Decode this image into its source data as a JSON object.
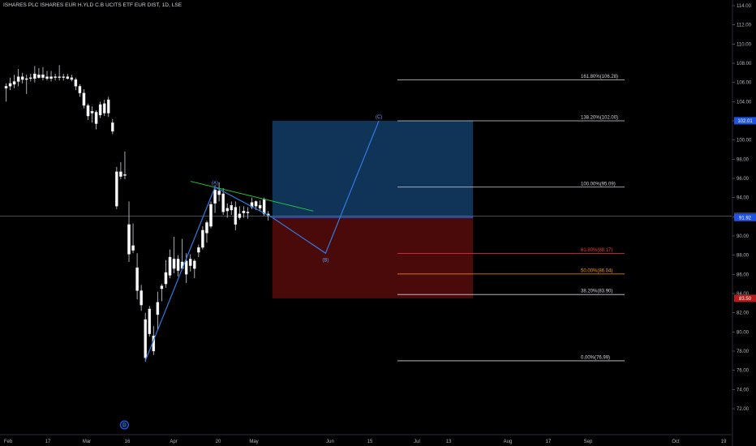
{
  "chart_title": "ISHARES PLC ISHARES EUR H.YLD C.B UCITS ETF EUR DIST, 1D, LSE",
  "colors": {
    "background": "#000000",
    "candle_up": "#ffffff",
    "candle_down": "#ffffff",
    "wave_line": "#2f7be0",
    "trend_line": "#1fc23a",
    "target_zone": "#103358",
    "stop_zone": "#4a0a0a",
    "price_badge_gray": "#363a45",
    "price_badge_blue": "#1e53e5",
    "price_badge_red": "#b71c1c",
    "fib_white": "#d1d4dc",
    "fib_red": "#f23645",
    "fib_orange": "#ff9800"
  },
  "chart_data": {
    "type": "candlestick",
    "title": "ISHARES PLC ISHARES EUR H.YLD C.B UCITS ETF EUR DIST, 1D, LSE",
    "ylim": [
      71.5,
      114.3
    ],
    "y_ticks": [
      "114.00",
      "112.00",
      "110.00",
      "108.00",
      "106.00",
      "104.00",
      "102.00",
      "100.00",
      "98.00",
      "96.00",
      "94.00",
      "92.00",
      "90.00",
      "88.00",
      "86.00",
      "84.00",
      "82.00",
      "80.00",
      "78.00",
      "76.00",
      "74.00",
      "72.00"
    ],
    "x_ticks": [
      "Feb",
      "17",
      "Mar",
      "16",
      "Apr",
      "20",
      "May",
      "Jun",
      "15",
      "Jul",
      "13",
      "Aug",
      "17",
      "Sep",
      "Oct",
      "19"
    ],
    "candles": [
      {
        "i": 0,
        "o": 105.4,
        "h": 105.9,
        "l": 104.0,
        "c": 105.6
      },
      {
        "i": 1,
        "o": 105.6,
        "h": 106.5,
        "l": 105.2,
        "c": 105.9
      },
      {
        "i": 2,
        "o": 105.8,
        "h": 106.8,
        "l": 105.4,
        "c": 106.1
      },
      {
        "i": 3,
        "o": 106.1,
        "h": 107.4,
        "l": 105.6,
        "c": 106.6
      },
      {
        "i": 4,
        "o": 106.6,
        "h": 107.0,
        "l": 105.9,
        "c": 106.3
      },
      {
        "i": 5,
        "o": 106.3,
        "h": 106.8,
        "l": 104.8,
        "c": 106.4
      },
      {
        "i": 6,
        "o": 106.4,
        "h": 106.9,
        "l": 106.1,
        "c": 106.5
      },
      {
        "i": 7,
        "o": 106.4,
        "h": 107.7,
        "l": 106.0,
        "c": 106.9
      },
      {
        "i": 8,
        "o": 106.8,
        "h": 107.5,
        "l": 106.4,
        "c": 106.5
      },
      {
        "i": 9,
        "o": 106.5,
        "h": 107.6,
        "l": 106.2,
        "c": 106.8
      },
      {
        "i": 10,
        "o": 106.6,
        "h": 107.2,
        "l": 106.2,
        "c": 106.4
      },
      {
        "i": 11,
        "o": 106.4,
        "h": 107.2,
        "l": 106.1,
        "c": 106.6
      },
      {
        "i": 12,
        "o": 106.5,
        "h": 106.9,
        "l": 106.2,
        "c": 106.6
      },
      {
        "i": 13,
        "o": 106.6,
        "h": 107.8,
        "l": 106.2,
        "c": 106.5
      },
      {
        "i": 14,
        "o": 106.5,
        "h": 106.9,
        "l": 106.2,
        "c": 106.6
      },
      {
        "i": 15,
        "o": 106.6,
        "h": 106.9,
        "l": 106.3,
        "c": 106.4
      },
      {
        "i": 16,
        "o": 106.5,
        "h": 106.8,
        "l": 106.1,
        "c": 106.3
      },
      {
        "i": 17,
        "o": 106.3,
        "h": 106.5,
        "l": 105.2,
        "c": 105.6
      },
      {
        "i": 18,
        "o": 105.6,
        "h": 105.8,
        "l": 104.5,
        "c": 104.9
      },
      {
        "i": 19,
        "o": 104.9,
        "h": 105.3,
        "l": 103.3,
        "c": 103.6
      },
      {
        "i": 20,
        "o": 103.6,
        "h": 103.8,
        "l": 102.1,
        "c": 102.5
      },
      {
        "i": 21,
        "o": 102.8,
        "h": 103.5,
        "l": 101.8,
        "c": 103.0
      },
      {
        "i": 22,
        "o": 102.9,
        "h": 103.1,
        "l": 101.1,
        "c": 101.7
      },
      {
        "i": 23,
        "o": 102.6,
        "h": 104.0,
        "l": 102.3,
        "c": 103.7
      },
      {
        "i": 24,
        "o": 103.8,
        "h": 104.2,
        "l": 102.5,
        "c": 102.8
      },
      {
        "i": 25,
        "o": 102.8,
        "h": 104.5,
        "l": 102.4,
        "c": 104.2
      },
      {
        "i": 26,
        "o": 101.8,
        "h": 102.2,
        "l": 100.6,
        "c": 100.9
      },
      {
        "i": 27,
        "o": 96.7,
        "h": 97.2,
        "l": 92.8,
        "c": 93.1
      },
      {
        "i": 28,
        "o": 96.2,
        "h": 97.7,
        "l": 95.9,
        "c": 96.7
      },
      {
        "i": 29,
        "o": 96.3,
        "h": 98.8,
        "l": 95.9,
        "c": 96.4
      },
      {
        "i": 30,
        "o": 91.2,
        "h": 93.6,
        "l": 87.3,
        "c": 88.1
      },
      {
        "i": 31,
        "o": 88.5,
        "h": 91.3,
        "l": 88.2,
        "c": 89.0
      },
      {
        "i": 32,
        "o": 86.7,
        "h": 88.2,
        "l": 83.4,
        "c": 84.3
      },
      {
        "i": 33,
        "o": 84.3,
        "h": 84.9,
        "l": 82.2,
        "c": 82.8
      },
      {
        "i": 34,
        "o": 81.3,
        "h": 82.0,
        "l": 76.9,
        "c": 77.3
      },
      {
        "i": 35,
        "o": 79.8,
        "h": 82.7,
        "l": 79.5,
        "c": 82.4
      },
      {
        "i": 36,
        "o": 79.6,
        "h": 80.6,
        "l": 77.6,
        "c": 78.0
      },
      {
        "i": 37,
        "o": 81.8,
        "h": 84.2,
        "l": 80.2,
        "c": 83.1
      },
      {
        "i": 38,
        "o": 84.5,
        "h": 85.0,
        "l": 83.2,
        "c": 84.8
      },
      {
        "i": 39,
        "o": 85.0,
        "h": 87.5,
        "l": 84.6,
        "c": 86.2
      },
      {
        "i": 40,
        "o": 85.9,
        "h": 88.6,
        "l": 85.6,
        "c": 87.8
      },
      {
        "i": 41,
        "o": 87.6,
        "h": 89.9,
        "l": 86.1,
        "c": 86.6
      },
      {
        "i": 42,
        "o": 86.4,
        "h": 88.0,
        "l": 85.8,
        "c": 87.6
      },
      {
        "i": 43,
        "o": 87.3,
        "h": 89.7,
        "l": 86.9,
        "c": 86.6
      },
      {
        "i": 44,
        "o": 86.0,
        "h": 88.2,
        "l": 85.1,
        "c": 87.4
      },
      {
        "i": 45,
        "o": 87.6,
        "h": 88.1,
        "l": 86.3,
        "c": 86.9
      },
      {
        "i": 46,
        "o": 86.6,
        "h": 87.6,
        "l": 85.6,
        "c": 87.4
      },
      {
        "i": 47,
        "o": 88.3,
        "h": 89.1,
        "l": 87.8,
        "c": 88.8
      },
      {
        "i": 48,
        "o": 88.8,
        "h": 91.0,
        "l": 88.6,
        "c": 90.6
      },
      {
        "i": 49,
        "o": 90.3,
        "h": 91.6,
        "l": 89.3,
        "c": 91.4
      },
      {
        "i": 50,
        "o": 91.0,
        "h": 93.6,
        "l": 90.8,
        "c": 93.3
      },
      {
        "i": 51,
        "o": 93.4,
        "h": 95.3,
        "l": 92.4,
        "c": 94.8
      },
      {
        "i": 52,
        "o": 94.7,
        "h": 95.6,
        "l": 93.6,
        "c": 94.3
      },
      {
        "i": 53,
        "o": 94.4,
        "h": 95.0,
        "l": 92.2,
        "c": 92.5
      },
      {
        "i": 54,
        "o": 92.6,
        "h": 93.4,
        "l": 91.9,
        "c": 92.9
      },
      {
        "i": 55,
        "o": 92.7,
        "h": 93.6,
        "l": 92.2,
        "c": 93.2
      },
      {
        "i": 56,
        "o": 93.0,
        "h": 93.6,
        "l": 90.6,
        "c": 91.2
      },
      {
        "i": 57,
        "o": 91.9,
        "h": 93.1,
        "l": 91.7,
        "c": 92.3
      },
      {
        "i": 58,
        "o": 92.6,
        "h": 93.1,
        "l": 91.9,
        "c": 92.4
      },
      {
        "i": 59,
        "o": 92.4,
        "h": 93.0,
        "l": 91.8,
        "c": 92.5
      },
      {
        "i": 60,
        "o": 93.5,
        "h": 94.0,
        "l": 92.8,
        "c": 93.0
      },
      {
        "i": 61,
        "o": 93.1,
        "h": 93.7,
        "l": 92.7,
        "c": 93.6
      },
      {
        "i": 62,
        "o": 92.9,
        "h": 93.7,
        "l": 92.6,
        "c": 93.2
      },
      {
        "i": 63,
        "o": 93.8,
        "h": 94.0,
        "l": 92.1,
        "c": 92.3
      },
      {
        "i": 64,
        "o": 92.3,
        "h": 92.6,
        "l": 91.6,
        "c": 92.1
      }
    ],
    "wave_points": [
      {
        "i": 34,
        "v": 77.0
      },
      {
        "i": 51,
        "label": "(A)",
        "v": 95.1
      },
      {
        "i": 65,
        "v": 91.92
      },
      {
        "i": 78,
        "label": "(B)",
        "v": 88.2
      },
      {
        "i": 91,
        "label": "(C)",
        "v": 102.0
      }
    ],
    "trend_line": [
      {
        "i": 45,
        "v": 95.7
      },
      {
        "i": 75,
        "v": 92.6
      }
    ],
    "target_zone": {
      "from_i": 65,
      "to_i": 114,
      "top": 102.01,
      "bottom": 91.92
    },
    "stop_zone": {
      "from_i": 65,
      "to_i": 114,
      "top": 91.92,
      "bottom": 83.5
    },
    "fib_levels": [
      {
        "value": 106.28,
        "label": "161.80%(106.28)",
        "color": "white"
      },
      {
        "value": 102.0,
        "label": "138.20%(102.00)",
        "color": "white"
      },
      {
        "value": 95.09,
        "label": "100.00%(95.09)",
        "color": "white"
      },
      {
        "value": 88.17,
        "label": "61.80%(88.17)",
        "color": "red"
      },
      {
        "value": 86.04,
        "label": "50.00%(86.04)",
        "color": "orange"
      },
      {
        "value": 83.9,
        "label": "38.20%(83.90)",
        "color": "white"
      },
      {
        "value": 76.99,
        "label": "0.00%(76.99)",
        "color": "white"
      }
    ],
    "horizontal_line": 92.07,
    "price_badges": [
      {
        "value": 102.01,
        "label": "102.01",
        "color": "blue"
      },
      {
        "value": 92.07,
        "label": "92.07",
        "color": "gray"
      },
      {
        "value": 91.92,
        "label": "91.92",
        "color": "blue"
      },
      {
        "value": 83.5,
        "label": "83.50",
        "color": "red"
      }
    ],
    "marker_circle": {
      "i": 29,
      "label": "D"
    }
  }
}
